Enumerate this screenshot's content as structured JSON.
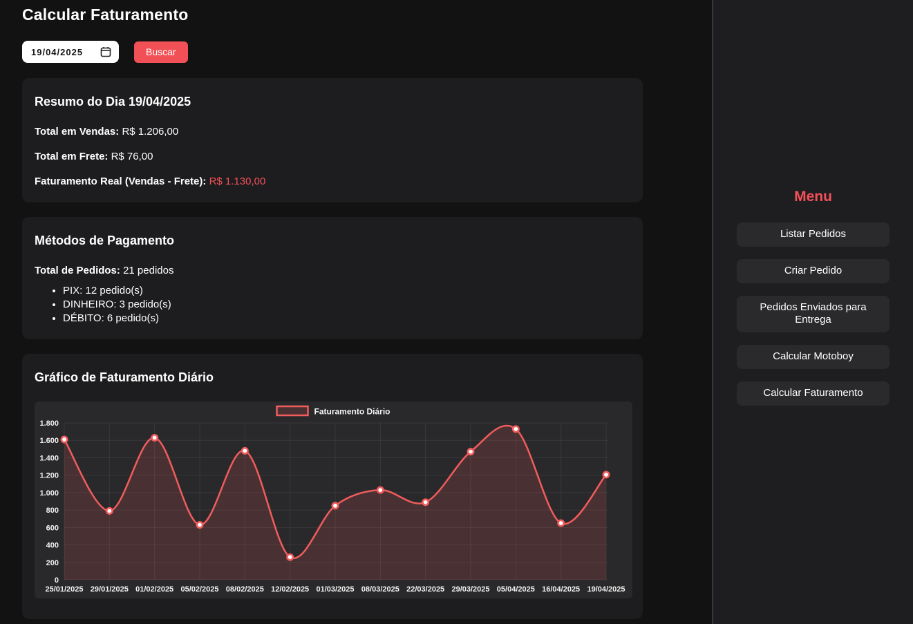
{
  "page": {
    "title": "Calcular Faturamento"
  },
  "colors": {
    "accent_red": "#f4505a",
    "button_red": "#f15156",
    "chart_line": "#f25c5c",
    "chart_fill": "rgba(242,92,92,0.16)",
    "page_bg": "#121212",
    "card_bg": "#1d1d1f",
    "chart_box_bg": "#29292b"
  },
  "search": {
    "date_value": "19/04/2025",
    "button_label": "Buscar"
  },
  "summary": {
    "title": "Resumo do Dia 19/04/2025",
    "rows": [
      {
        "label": "Total em Vendas:",
        "value": "R$ 1.206,00"
      },
      {
        "label": "Total em Frete:",
        "value": "R$ 76,00"
      },
      {
        "label": "Faturamento Real (Vendas - Frete):",
        "value": "R$ 1.130,00",
        "highlight": true
      }
    ]
  },
  "payments": {
    "title": "Métodos de Pagamento",
    "total_label": "Total de Pedidos:",
    "total_value": "21 pedidos",
    "methods": [
      {
        "label": "PIX: 12 pedido(s)"
      },
      {
        "label": "DINHEIRO: 3 pedido(s)"
      },
      {
        "label": "DÉBITO: 6 pedido(s)"
      }
    ]
  },
  "chart_section": {
    "title": "Gráfico de Faturamento Diário"
  },
  "chart_data": {
    "type": "line",
    "title": "",
    "legend": "Faturamento Diário",
    "legend_position": "top",
    "grid": true,
    "categories": [
      "25/01/2025",
      "29/01/2025",
      "01/02/2025",
      "05/02/2025",
      "08/02/2025",
      "12/02/2025",
      "01/03/2025",
      "08/03/2025",
      "22/03/2025",
      "29/03/2025",
      "05/04/2025",
      "16/04/2025",
      "19/04/2025"
    ],
    "values": [
      1610,
      790,
      1630,
      630,
      1480,
      260,
      850,
      1030,
      890,
      1470,
      1730,
      650,
      1206
    ],
    "xlabel": "",
    "ylabel": "",
    "ylim": [
      0,
      1800
    ],
    "ytick_step": 200
  },
  "sidebar": {
    "title": "Menu",
    "items": [
      {
        "label": "Listar Pedidos"
      },
      {
        "label": "Criar Pedido"
      },
      {
        "label": "Pedidos Enviados para Entrega"
      },
      {
        "label": "Calcular Motoboy"
      },
      {
        "label": "Calcular Faturamento"
      }
    ]
  }
}
